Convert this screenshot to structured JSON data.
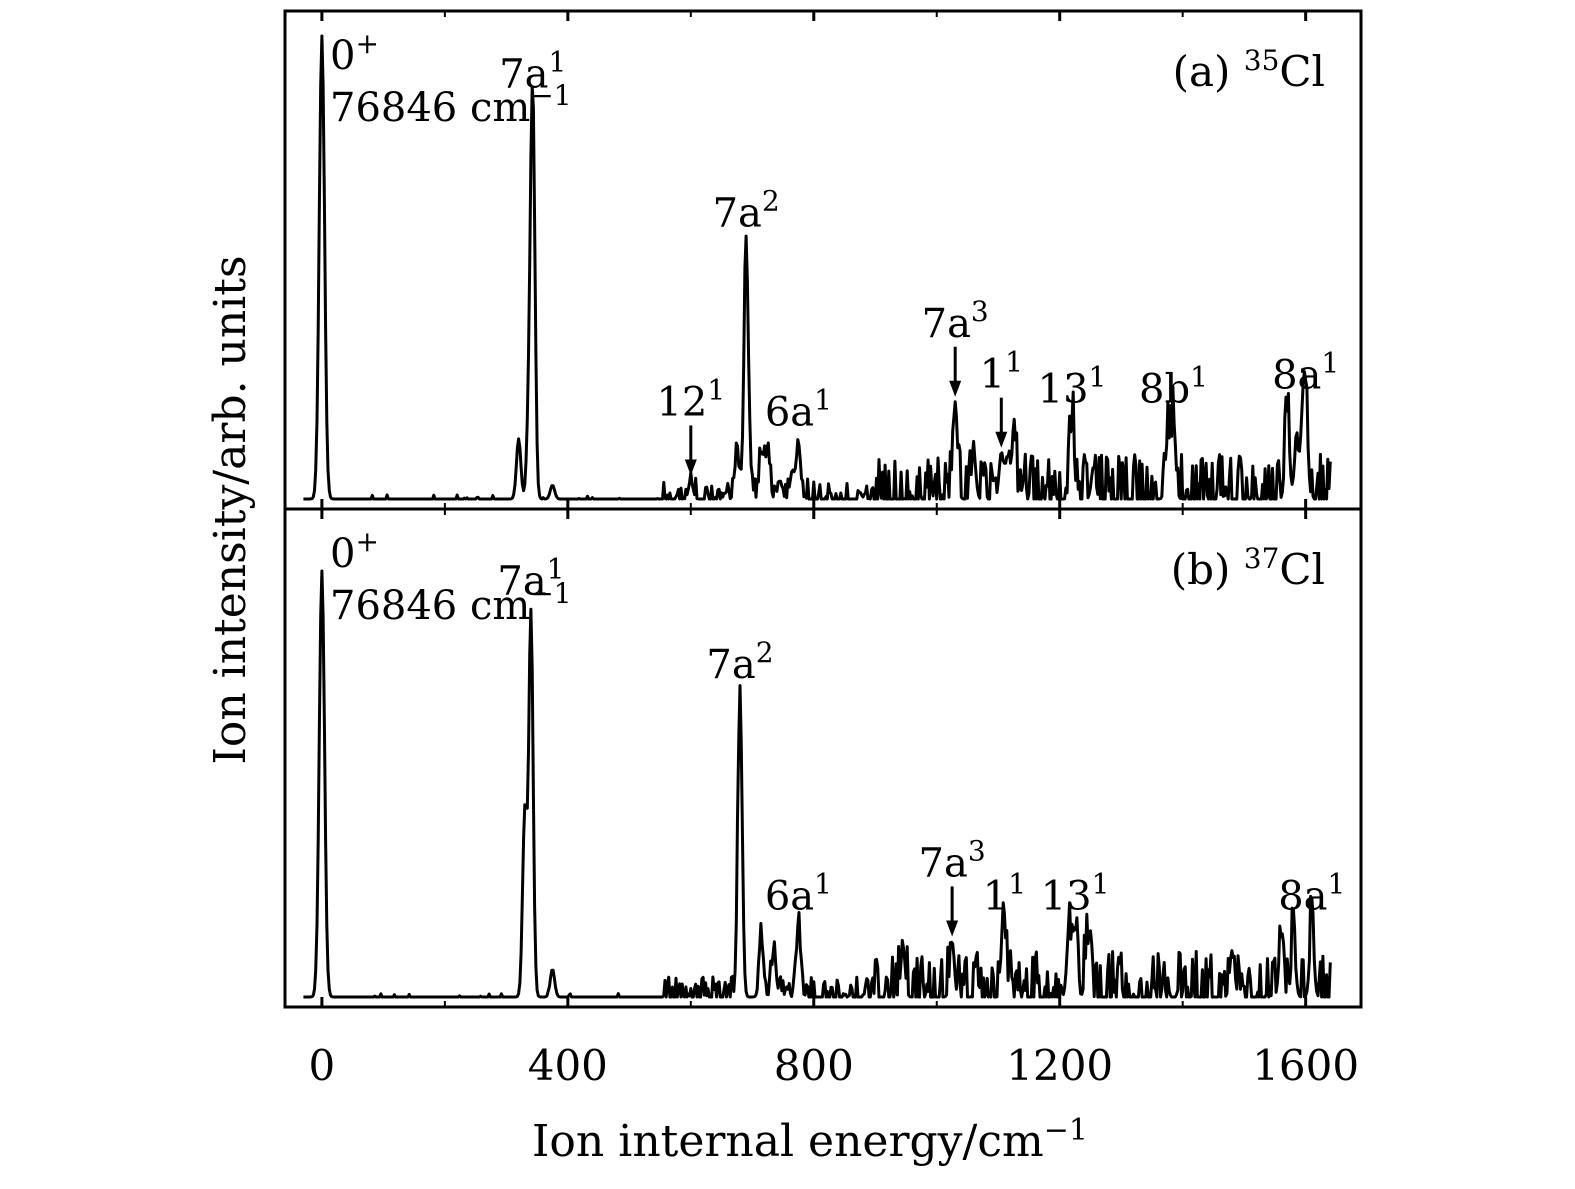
{
  "chart_data": [
    {
      "type": "line",
      "panel_label": "(a)",
      "isotope_mass": "35",
      "isotope_symbol": "Cl",
      "origin_label": "0",
      "origin_sup": "+",
      "origin_energy": "76846 cm",
      "origin_energy_sup": "−1",
      "xlim": [
        -60,
        1690
      ],
      "ylim": [
        0,
        1.1
      ],
      "xlabel": "Ion internal energy/cm",
      "xlabel_sup": "−1",
      "ylabel": "Ion intensity/arb. units",
      "x_ticks": [
        0,
        400,
        800,
        1200,
        1600
      ],
      "x_tick_labels": [
        "0",
        "400",
        "800",
        "1200",
        "1600"
      ],
      "peaks": [
        {
          "x": 0,
          "y": 1.0,
          "base": "0",
          "sup": "+",
          "label": true
        },
        {
          "x": 343,
          "y": 0.85,
          "base": "7a",
          "sup": "1"
        },
        {
          "x": 690,
          "y": 0.55,
          "base": "7a",
          "sup": "2"
        },
        {
          "x": 600,
          "y": 0.04,
          "base": "12",
          "sup": "1",
          "arrow": true
        },
        {
          "x": 775,
          "y": 0.12,
          "base": "6a",
          "sup": "1"
        },
        {
          "x": 1030,
          "y": 0.21,
          "base": "7a",
          "sup": "3",
          "arrow": true
        },
        {
          "x": 1105,
          "y": 0.1,
          "base": "1",
          "sup": "1",
          "arrow": true
        },
        {
          "x": 1220,
          "y": 0.17,
          "base": "13",
          "sup": "1"
        },
        {
          "x": 1385,
          "y": 0.17,
          "base": "8b",
          "sup": "1"
        },
        {
          "x": 1600,
          "y": 0.2,
          "base": "8a",
          "sup": "1"
        }
      ],
      "minor_peaks": [
        [
          320,
          0.13
        ],
        [
          337,
          0.2
        ],
        [
          375,
          0.03
        ],
        [
          675,
          0.1
        ],
        [
          715,
          0.1
        ],
        [
          725,
          0.11
        ],
        [
          745,
          0.04
        ],
        [
          765,
          0.06
        ],
        [
          1060,
          0.1
        ],
        [
          1115,
          0.09
        ],
        [
          1125,
          0.12
        ],
        [
          1255,
          0.07
        ],
        [
          1375,
          0.12
        ],
        [
          1570,
          0.19
        ],
        [
          1585,
          0.12
        ],
        [
          1595,
          0.15
        ]
      ]
    },
    {
      "type": "line",
      "panel_label": "(b)",
      "isotope_mass": "37",
      "isotope_symbol": "Cl",
      "origin_label": "0",
      "origin_sup": "+",
      "origin_energy": "76846 cm",
      "origin_energy_sup": "−1",
      "xlim": [
        -60,
        1690
      ],
      "ylim": [
        0,
        1.1
      ],
      "peaks": [
        {
          "x": 0,
          "y": 0.92,
          "base": "0",
          "sup": "+",
          "label": true
        },
        {
          "x": 340,
          "y": 0.83,
          "base": "7a",
          "sup": "1"
        },
        {
          "x": 680,
          "y": 0.65,
          "base": "7a",
          "sup": "2"
        },
        {
          "x": 775,
          "y": 0.15,
          "base": "6a",
          "sup": "1"
        },
        {
          "x": 1025,
          "y": 0.12,
          "base": "7a",
          "sup": "3",
          "arrow": true
        },
        {
          "x": 1110,
          "y": 0.15,
          "base": "1",
          "sup": "1"
        },
        {
          "x": 1225,
          "y": 0.15,
          "base": "13",
          "sup": "1"
        },
        {
          "x": 1610,
          "y": 0.15,
          "base": "8a",
          "sup": "1"
        }
      ],
      "minor_peaks": [
        [
          330,
          0.4
        ],
        [
          375,
          0.06
        ],
        [
          715,
          0.12
        ],
        [
          735,
          0.1
        ],
        [
          945,
          0.11
        ],
        [
          1215,
          0.14
        ],
        [
          1245,
          0.12
        ],
        [
          1480,
          0.1
        ],
        [
          1560,
          0.13
        ],
        [
          1580,
          0.12
        ]
      ]
    }
  ]
}
